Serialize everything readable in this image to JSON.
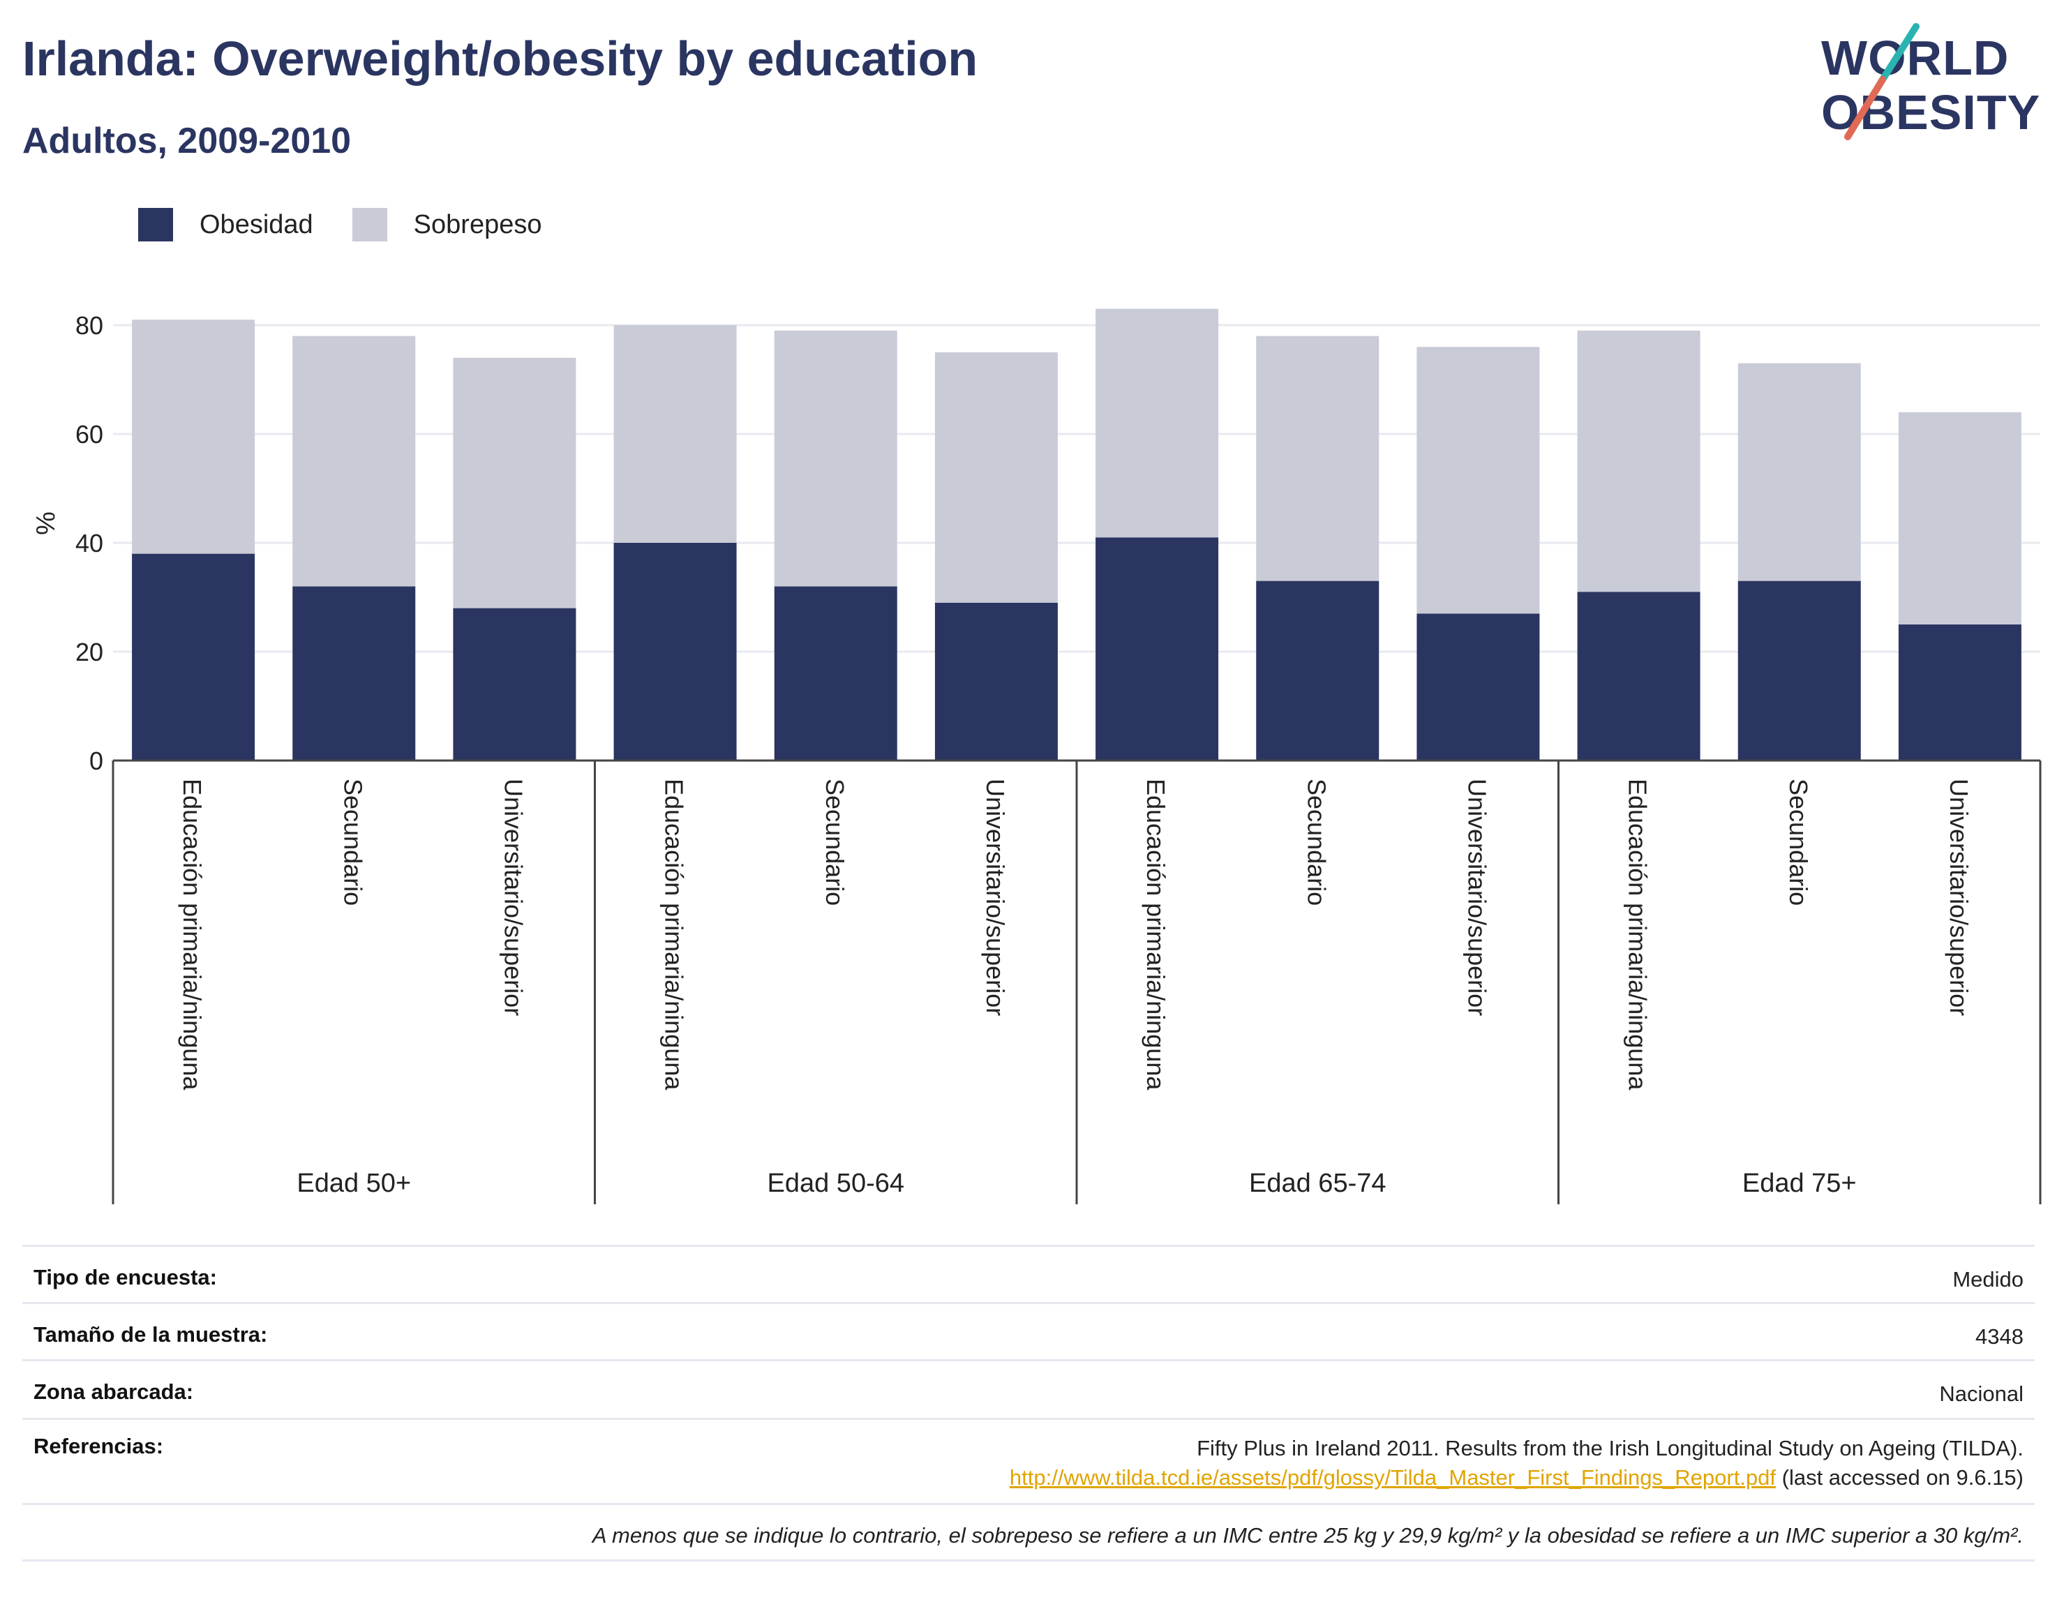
{
  "header": {
    "title": "Irlanda: Overweight/obesity by education",
    "subtitle": "Adultos, 2009-2010"
  },
  "logo": {
    "line1": "WORLD",
    "line2": "OBESITY",
    "colors": {
      "text": "#2b3561",
      "slash_top": "#2ab3b1",
      "slash_bottom": "#e06a55"
    }
  },
  "legend": {
    "items": [
      {
        "label": "Obesidad",
        "color": "#2b3561"
      },
      {
        "label": "Sobrepeso",
        "color": "#c9cbd7"
      }
    ]
  },
  "chart_data": {
    "type": "bar",
    "stacked": true,
    "ylabel": "%",
    "ylim": [
      0,
      90
    ],
    "yticks": [
      0,
      20,
      40,
      60,
      80
    ],
    "grid": true,
    "legend_position": "top-left",
    "groups": [
      {
        "label": "Edad 50+",
        "categories": [
          "Educación primaria/ninguna",
          "Secundario",
          "Universitario/superior"
        ]
      },
      {
        "label": "Edad 50-64",
        "categories": [
          "Educación primaria/ninguna",
          "Secundario",
          "Universitario/superior"
        ]
      },
      {
        "label": "Edad 65-74",
        "categories": [
          "Educación primaria/ninguna",
          "Secundario",
          "Universitario/superior"
        ]
      },
      {
        "label": "Edad 75+",
        "categories": [
          "Educación primaria/ninguna",
          "Secundario",
          "Universitario/superior"
        ]
      }
    ],
    "series": [
      {
        "name": "Obesidad",
        "color": "#2b3561",
        "values": [
          38,
          32,
          28,
          40,
          32,
          29,
          41,
          33,
          27,
          31,
          33,
          25
        ]
      },
      {
        "name": "Sobrepeso",
        "color": "#c9cbd7",
        "values": [
          43,
          46,
          46,
          40,
          47,
          46,
          42,
          45,
          49,
          48,
          40,
          39
        ]
      }
    ]
  },
  "info": {
    "rows": [
      {
        "label": "Tipo de encuesta:",
        "value": "Medido"
      },
      {
        "label": "Tamaño de la muestra:",
        "value": "4348"
      },
      {
        "label": "Zona abarcada:",
        "value": "Nacional"
      }
    ],
    "references": {
      "label": "Referencias:",
      "text": "Fifty Plus in Ireland 2011. Results from the Irish Longitudinal Study on Ageing (TILDA).",
      "link": "http://www.tilda.tcd.ie/assets/pdf/glossy/Tilda_Master_First_Findings_Report.pdf",
      "accessed": " (last accessed on 9.6.15)"
    },
    "note": "A menos que se indique lo contrario, el sobrepeso se refiere a un IMC entre 25 kg y 29,9 kg/m² y la obesidad se refiere a un IMC superior a 30 kg/m²."
  }
}
